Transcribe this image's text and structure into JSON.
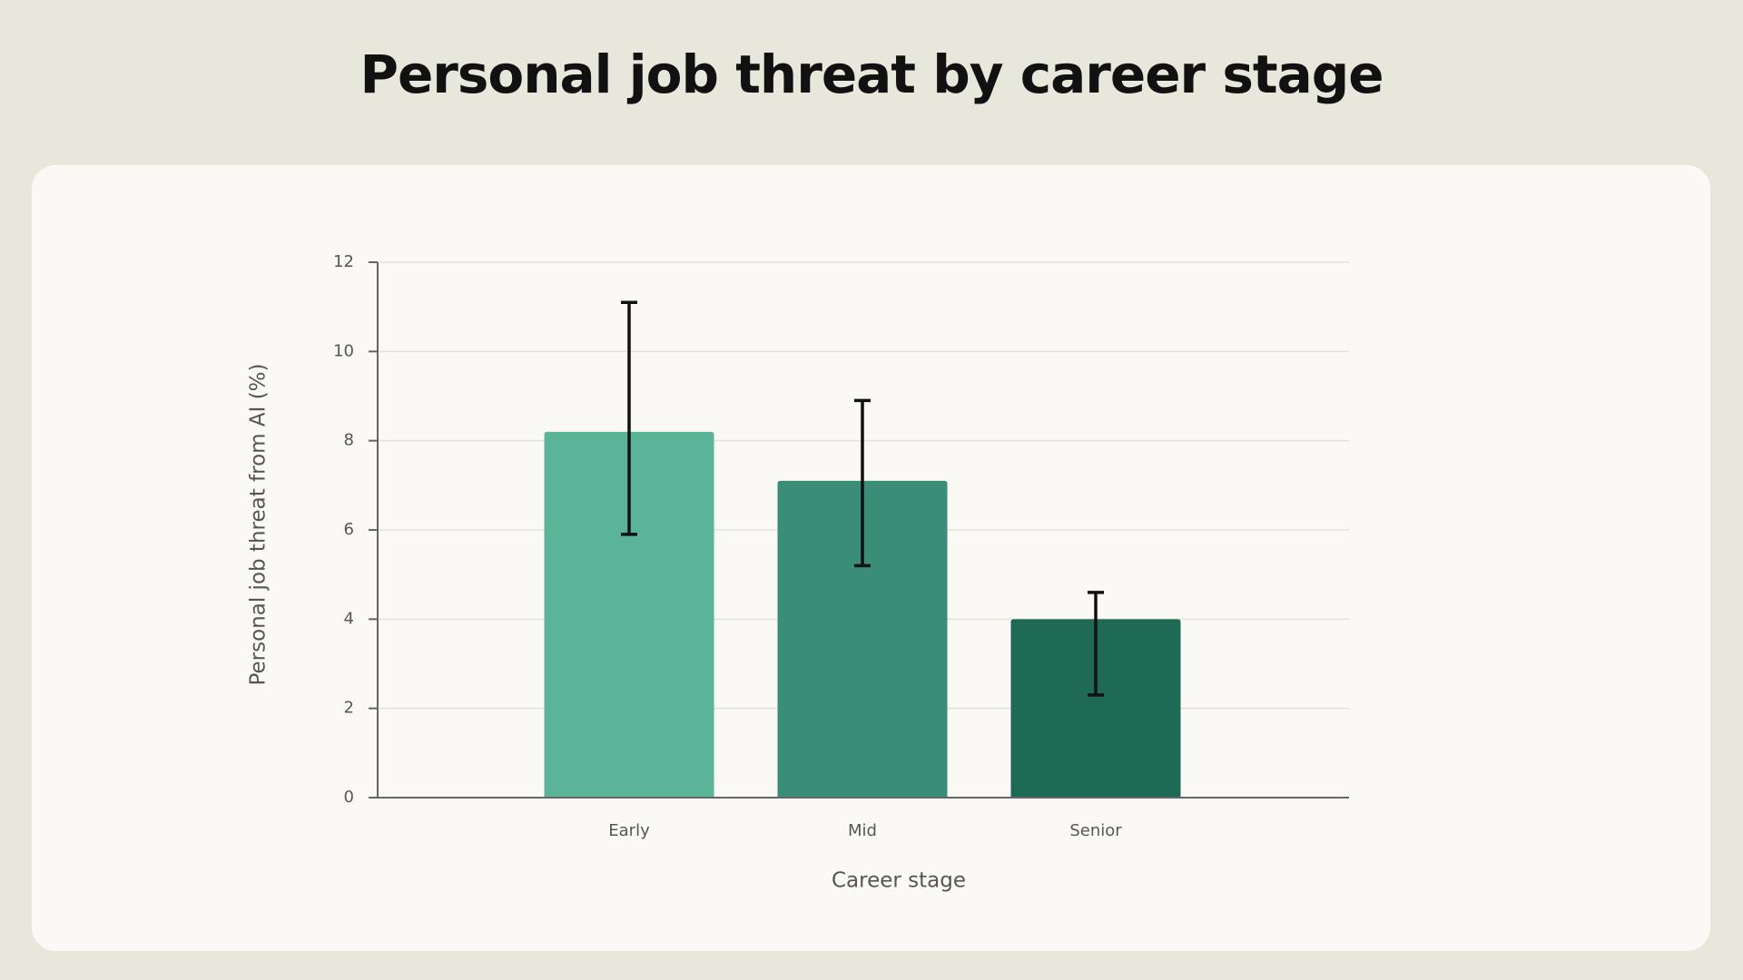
{
  "chart_data": {
    "type": "bar",
    "title": "Personal job threat by career stage",
    "x_label": "Career stage",
    "y_label": "Personal job threat from AI (%)",
    "categories": [
      "Early",
      "Mid",
      "Senior"
    ],
    "values": [
      8.2,
      7.1,
      4.0
    ],
    "ci_low": [
      5.9,
      5.2,
      2.3
    ],
    "ci_high": [
      11.1,
      8.9,
      4.6
    ],
    "colors": [
      "#5bb398",
      "#3a8d76",
      "#1e6a55"
    ],
    "ylim": [
      0,
      12
    ],
    "yticks": [
      0,
      2,
      4,
      6,
      8,
      10,
      12
    ],
    "grid": true
  }
}
